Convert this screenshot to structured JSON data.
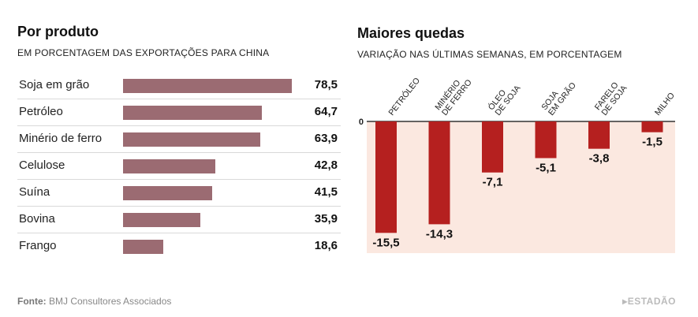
{
  "left": {
    "title": "Por produto",
    "subtitle": "EM PORCENTAGEM DAS EXPORTAÇÕES PARA CHINA"
  },
  "right": {
    "title": "Maiores quedas",
    "subtitle": "VARIAÇÃO NAS ÚLTIMAS SEMANAS, EM PORCENTAGEM"
  },
  "footer": {
    "source_label": "Fonte:",
    "source_text": "BMJ Consultores Associados",
    "brand": "ESTADÃO"
  },
  "colors": {
    "left_bar": "#9b6b72",
    "right_bar": "#b5201f",
    "right_bg": "#fbe8e0"
  },
  "chart_data": [
    {
      "type": "bar",
      "orientation": "horizontal",
      "title": "Por produto",
      "subtitle": "EM PORCENTAGEM DAS EXPORTAÇÕES PARA CHINA",
      "categories": [
        "Soja em grão",
        "Petróleo",
        "Minério de ferro",
        "Celulose",
        "Suína",
        "Bovina",
        "Frango"
      ],
      "values": [
        78.5,
        64.7,
        63.9,
        42.8,
        41.5,
        35.9,
        18.6
      ],
      "value_labels": [
        "78,5",
        "64,7",
        "63,9",
        "42,8",
        "41,5",
        "35,9",
        "18,6"
      ],
      "xlim": [
        0,
        80
      ],
      "grid": false
    },
    {
      "type": "bar",
      "orientation": "vertical",
      "title": "Maiores quedas",
      "subtitle": "VARIAÇÃO NAS ÚLTIMAS SEMANAS, EM PORCENTAGEM",
      "categories": [
        [
          "PETRÓLEO"
        ],
        [
          "MINÉRIO",
          "DE FERRO"
        ],
        [
          "ÓLEO",
          "DE SOJA"
        ],
        [
          "SOJA",
          "EM GRÃO"
        ],
        [
          "FARELO",
          "DE SOJA"
        ],
        [
          "MILHO"
        ]
      ],
      "values": [
        -15.5,
        -14.3,
        -7.1,
        -5.1,
        -3.8,
        -1.5
      ],
      "value_labels": [
        "-15,5",
        "-14,3",
        "-7,1",
        "-5,1",
        "-3,8",
        "-1,5"
      ],
      "zero_label": "0",
      "ylim": [
        -17,
        0
      ],
      "grid": false
    }
  ]
}
